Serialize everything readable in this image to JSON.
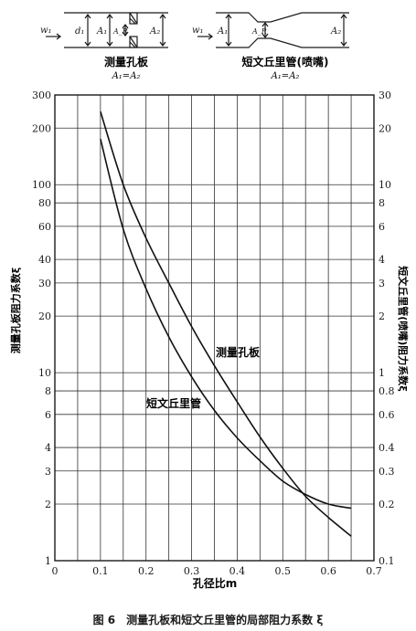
{
  "header": {
    "orifice": {
      "w": "w₁",
      "d": "d₁",
      "a1": "A₁",
      "ar": "A_R",
      "a2": "A₂",
      "name": "测量孔板",
      "eq": "A₁=A₂"
    },
    "venturi": {
      "w": "w₁",
      "a1": "A₁",
      "ar": "A_R",
      "a2": "A₂",
      "name": "短文丘里管(喷嘴)",
      "eq": "A₁=A₂"
    }
  },
  "caption": "图 6　测量孔板和短文丘里管的局部阻力系数 ξ",
  "chart_data": {
    "type": "line",
    "xlabel": "孔径比m",
    "ylabel_left": "测量孔板阻力系数ξ",
    "ylabel_right": "短文丘里管(喷嘴)阻力系数ξ",
    "x_scale": "linear",
    "y_scale": "log",
    "xlim": [
      0,
      0.7
    ],
    "ylim_left": [
      1,
      300
    ],
    "ylim_right": [
      0.1,
      30
    ],
    "x_ticks": [
      "0",
      "0.1",
      "0.2",
      "0.3",
      "0.4",
      "0.5",
      "0.6",
      "0.7"
    ],
    "left_ticks": [
      {
        "v": 1,
        "label": "1"
      },
      {
        "v": 2,
        "label": "2"
      },
      {
        "v": 3,
        "label": "3"
      },
      {
        "v": 4,
        "label": "4"
      },
      {
        "v": 6,
        "label": "6"
      },
      {
        "v": 8,
        "label": "8"
      },
      {
        "v": 10,
        "label": "10"
      },
      {
        "v": 20,
        "label": "20"
      },
      {
        "v": 30,
        "label": "30"
      },
      {
        "v": 40,
        "label": "40"
      },
      {
        "v": 60,
        "label": "60"
      },
      {
        "v": 80,
        "label": "80"
      },
      {
        "v": 100,
        "label": "100"
      },
      {
        "v": 200,
        "label": "200"
      },
      {
        "v": 300,
        "label": "300"
      }
    ],
    "right_ticks": [
      {
        "v": 0.1,
        "label": "0.1"
      },
      {
        "v": 0.2,
        "label": "0.2"
      },
      {
        "v": 0.3,
        "label": "0.3"
      },
      {
        "v": 0.4,
        "label": "0.4"
      },
      {
        "v": 0.6,
        "label": "0.6"
      },
      {
        "v": 0.8,
        "label": "0.8"
      },
      {
        "v": 1,
        "label": "1"
      },
      {
        "v": 2,
        "label": "2"
      },
      {
        "v": 3,
        "label": "3"
      },
      {
        "v": 4,
        "label": "4"
      },
      {
        "v": 6,
        "label": "6"
      },
      {
        "v": 8,
        "label": "8"
      },
      {
        "v": 10,
        "label": "10"
      },
      {
        "v": 20,
        "label": "20"
      },
      {
        "v": 30,
        "label": "30"
      }
    ],
    "grid": true,
    "series": [
      {
        "name": "测量孔板",
        "axis": "left",
        "x": [
          0.1,
          0.15,
          0.2,
          0.25,
          0.3,
          0.35,
          0.4,
          0.45,
          0.5,
          0.55,
          0.6,
          0.65
        ],
        "y": [
          245,
          100,
          52,
          30,
          17.6,
          10.9,
          7.0,
          4.55,
          3.1,
          2.2,
          1.7,
          1.35
        ]
      },
      {
        "name": "短文丘里管",
        "axis": "right",
        "x": [
          0.1,
          0.15,
          0.2,
          0.25,
          0.3,
          0.35,
          0.4,
          0.45,
          0.5,
          0.55,
          0.6,
          0.65
        ],
        "y": [
          17.5,
          5.8,
          2.8,
          1.55,
          0.95,
          0.63,
          0.45,
          0.34,
          0.265,
          0.225,
          0.2,
          0.19
        ]
      }
    ]
  }
}
